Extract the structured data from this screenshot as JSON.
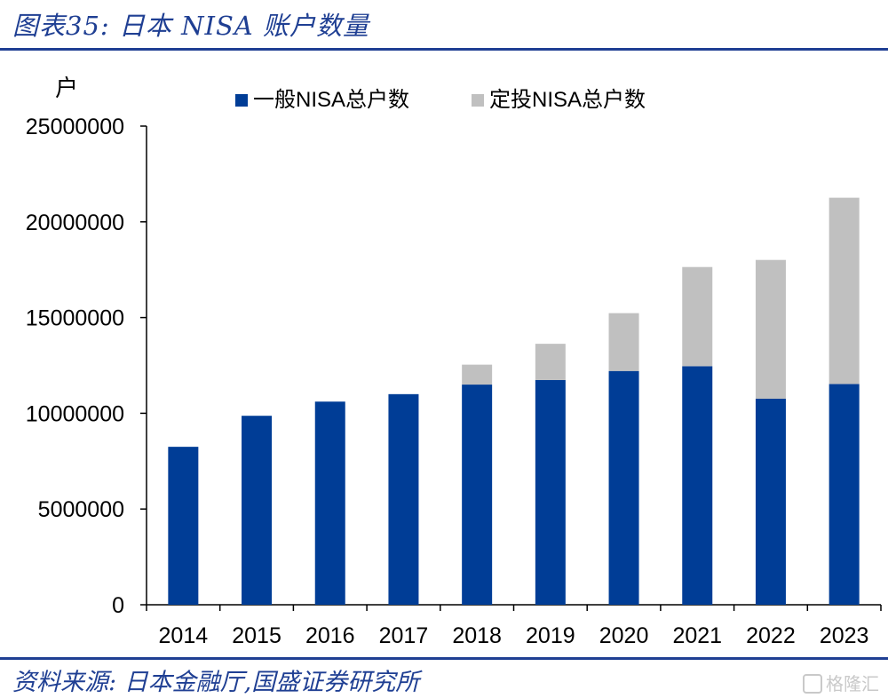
{
  "figure": {
    "title": "图表35:  日本 NISA 账户数量",
    "source": "资料来源:  日本金融厅,国盛证券研究所",
    "watermark": "格隆汇"
  },
  "colors": {
    "general": "#003d96",
    "tsumitate": "#c0c0c0",
    "accent": "#1f3f93"
  },
  "chart_data": {
    "type": "bar",
    "stacked": true,
    "unit_label": "户",
    "categories": [
      "2014",
      "2015",
      "2016",
      "2017",
      "2018",
      "2019",
      "2020",
      "2021",
      "2022",
      "2023"
    ],
    "series": [
      {
        "name": "一般NISA总户数",
        "values": [
          8250000,
          9870000,
          10610000,
          11000000,
          11500000,
          11740000,
          12210000,
          12460000,
          10760000,
          11530000
        ]
      },
      {
        "name": "定投NISA总户数",
        "values": [
          0,
          0,
          0,
          0,
          1040000,
          1890000,
          3020000,
          5180000,
          7250000,
          9730000
        ]
      }
    ],
    "ylim": [
      0,
      25000000
    ],
    "yticks": [
      "0",
      "5000000",
      "10000000",
      "15000000",
      "20000000",
      "25000000"
    ],
    "legend_position": "top",
    "grid": false
  }
}
